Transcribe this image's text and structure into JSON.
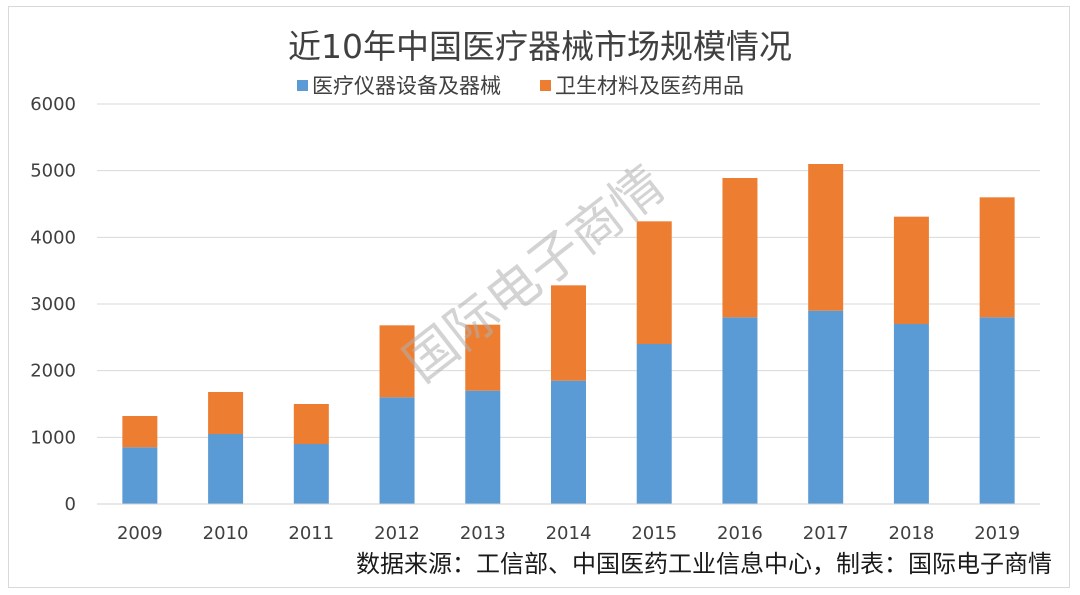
{
  "chart_data": {
    "type": "bar",
    "stacked": true,
    "title": "近10年中国医疗器械市场规模情况",
    "categories": [
      "2009",
      "2010",
      "2011",
      "2012",
      "2013",
      "2014",
      "2015",
      "2016",
      "2017",
      "2018",
      "2019"
    ],
    "series": [
      {
        "name": "医疗仪器设备及器械",
        "color": "#5b9bd5",
        "values": [
          850,
          1050,
          900,
          1600,
          1700,
          1850,
          2400,
          2800,
          2900,
          2700,
          2800
        ]
      },
      {
        "name": "卫生材料及医药用品",
        "color": "#ed7d31",
        "values": [
          470,
          630,
          600,
          1080,
          990,
          1430,
          1840,
          2090,
          2200,
          1610,
          1800
        ]
      }
    ],
    "ylim": [
      0,
      6000
    ],
    "yticks": [
      "0",
      "1000",
      "2000",
      "3000",
      "4000",
      "5000",
      "6000"
    ],
    "grid": true,
    "legend_position": "top"
  },
  "source_note": "数据来源：工信部、中国医药工业信息中心，制表：国际电子商情",
  "watermark": "国际电子商情"
}
